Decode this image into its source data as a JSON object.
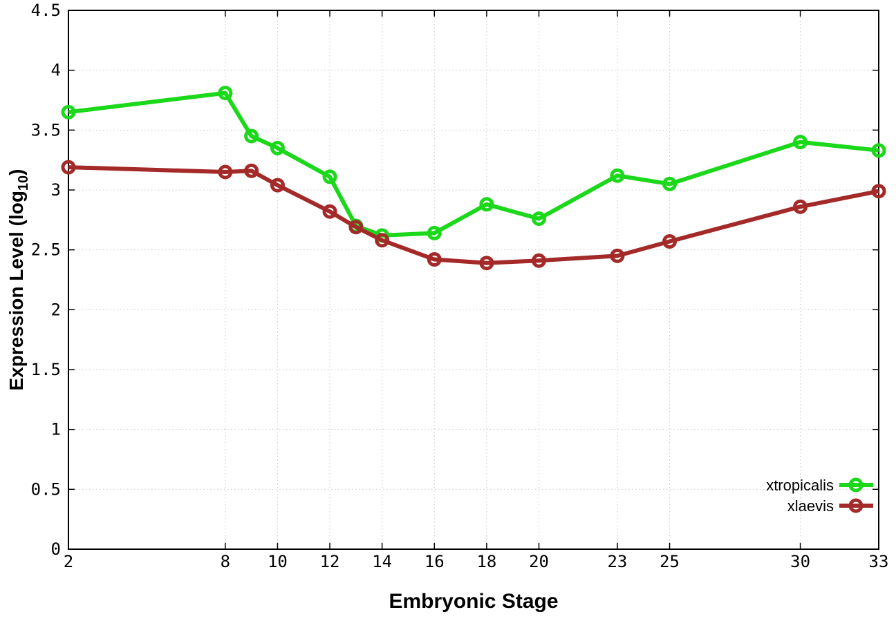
{
  "chart_data": {
    "type": "line",
    "title": "",
    "xlabel": "Embryonic Stage",
    "ylabel": "Expression Level (log10)",
    "ylabel_parts": {
      "main": "Expression Level (log",
      "sub": "10",
      "close": ")"
    },
    "xlim": [
      2,
      33
    ],
    "ylim": [
      0,
      4.5
    ],
    "xticks": [
      2,
      8,
      10,
      12,
      14,
      16,
      18,
      20,
      23,
      25,
      30,
      33
    ],
    "yticks": [
      0,
      0.5,
      1,
      1.5,
      2,
      2.5,
      3,
      3.5,
      4,
      4.5
    ],
    "ytick_labels": [
      "0",
      "0.5",
      "1",
      "1.5",
      "2",
      "2.5",
      "3",
      "3.5",
      "4",
      "4.5"
    ],
    "grid": true,
    "legend_position": "bottom-right",
    "x": [
      2,
      8,
      9,
      10,
      12,
      13,
      14,
      16,
      18,
      20,
      23,
      25,
      30,
      33
    ],
    "series": [
      {
        "name": "xtropicalis",
        "color": "#1bd81b",
        "marker": "open-circle",
        "values": [
          3.65,
          3.81,
          3.45,
          3.35,
          3.11,
          2.7,
          2.62,
          2.64,
          2.88,
          2.76,
          3.12,
          3.05,
          3.4,
          3.33
        ]
      },
      {
        "name": "xlaevis",
        "color": "#a42a2a",
        "marker": "open-circle",
        "values": [
          3.19,
          3.15,
          3.16,
          3.04,
          2.82,
          2.69,
          2.58,
          2.42,
          2.39,
          2.41,
          2.45,
          2.57,
          2.86,
          2.99
        ]
      }
    ],
    "styles": {
      "background": "#ffffff",
      "grid_color": "#c9c9c9",
      "border_color": "#000000",
      "text_color": "#000000"
    }
  }
}
